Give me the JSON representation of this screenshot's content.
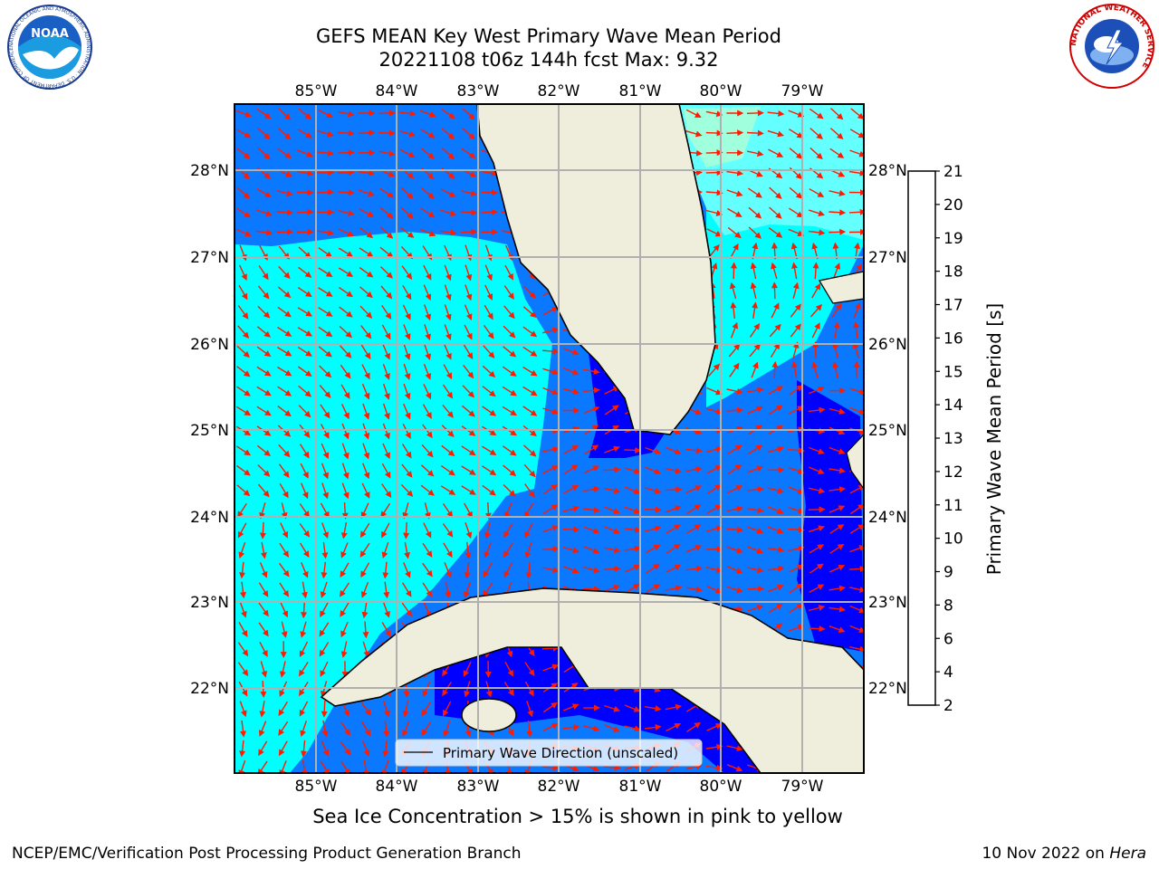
{
  "header": {
    "title_line1": "GEFS MEAN Key West Primary Wave Mean Period",
    "title_line2": "20221108 t06z 144h fcst   Max: 9.32"
  },
  "logos": {
    "noaa_text": "NOAA",
    "nws_text": "NATIONAL WEATHER SERVICE",
    "noaa_ring_text": "NATIONAL OCEANIC AND ATMOSPHERIC ADMINISTRATION · U.S. DEPARTMENT OF COMMERCE"
  },
  "map": {
    "lon_labels": [
      "85°W",
      "84°W",
      "83°W",
      "82°W",
      "81°W",
      "80°W",
      "79°W"
    ],
    "lat_labels": [
      "28°N",
      "27°N",
      "26°N",
      "25°N",
      "24°N",
      "23°N",
      "22°N"
    ],
    "legend_label": "Primary Wave Direction (unscaled)",
    "arrow_color": "#ff1a00",
    "land_color": "#efeedc"
  },
  "colorbar": {
    "label": "Primary Wave Mean Period [s]",
    "ticks": [
      "2",
      "4",
      "6",
      "8",
      "9",
      "10",
      "11",
      "12",
      "13",
      "14",
      "15",
      "16",
      "17",
      "18",
      "19",
      "20",
      "21"
    ],
    "colors": [
      "#0000ff",
      "#0a78ff",
      "#00ffff",
      "#64ffff",
      "#a0ffdc",
      "#50ff64",
      "#28f014",
      "#64f000",
      "#b4f000",
      "#e6f000",
      "#ffff00",
      "#ffd200",
      "#ffaa00",
      "#ff8200",
      "#ff5a00",
      "#ff2800"
    ]
  },
  "note": "Sea Ice Concentration > 15% is shown in pink to yellow",
  "footer": {
    "left": "NCEP/EMC/Verification Post Processing Product Generation Branch",
    "right_date": "10 Nov 2022 on",
    "right_machine": "Hera"
  }
}
